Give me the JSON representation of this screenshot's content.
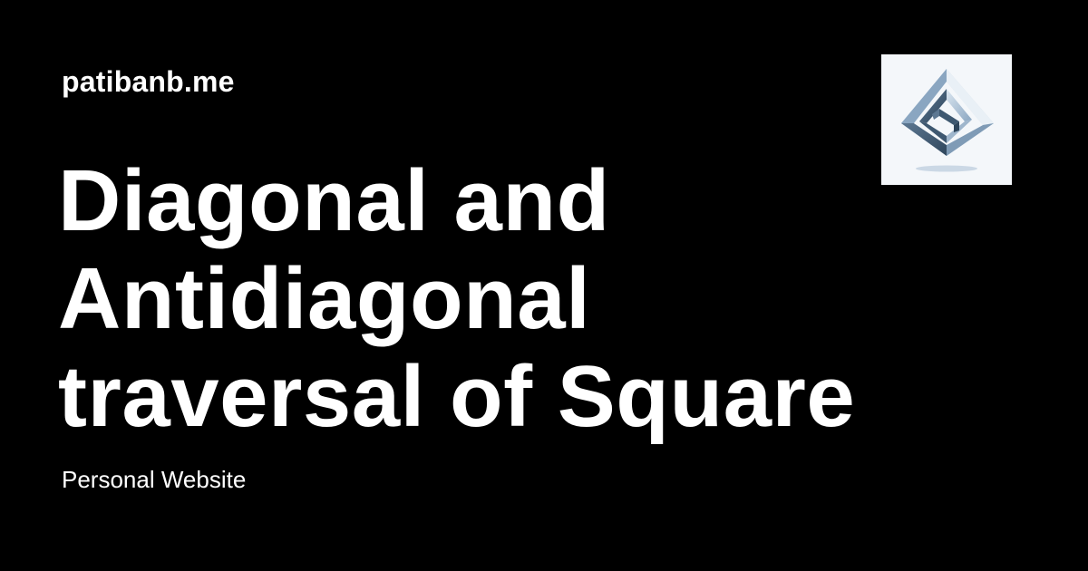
{
  "site": {
    "name": "patibanb.me"
  },
  "post": {
    "title_lines": [
      "Diagonal and",
      "Antidiagonal",
      "traversal of Square"
    ]
  },
  "footer": {
    "subtitle": "Personal Website"
  },
  "logo": {
    "icon": "impossible-square-logo-icon",
    "background": "#f4f7fa",
    "colors": [
      "#3e5870",
      "#8aa6c1",
      "#c9d8e6"
    ]
  }
}
